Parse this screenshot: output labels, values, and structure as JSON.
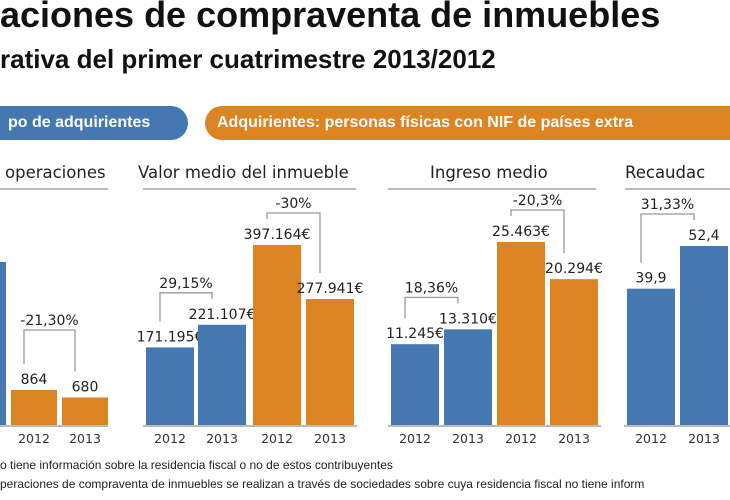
{
  "header": {
    "title": "aciones de compraventa de inmuebles",
    "subtitle": "rativa del primer cuatrimestre 2013/2012"
  },
  "legend": {
    "blue_label": "po de adquirientes",
    "orange_label": "Adquirientes: personas físicas con NIF de países extra"
  },
  "colors": {
    "blue": "#4578b0",
    "orange": "#dc8422"
  },
  "chart_data": [
    {
      "type": "bar",
      "title": "operaciones",
      "categories": [
        "2012",
        "2013"
      ],
      "bars": [
        {
          "series": "orange",
          "year": "2012",
          "value": 864,
          "label": "864"
        },
        {
          "series": "orange",
          "year": "2013",
          "value": 680,
          "label": "680"
        }
      ],
      "changes": [
        {
          "from": 0,
          "to": 1,
          "label": "-21,30%"
        }
      ]
    },
    {
      "type": "bar",
      "title": "Valor medio del inmueble",
      "bars": [
        {
          "series": "blue",
          "year": "2012",
          "value": 171195,
          "label": "171.195€"
        },
        {
          "series": "blue",
          "year": "2013",
          "value": 221107,
          "label": "221.107€"
        },
        {
          "series": "orange",
          "year": "2012",
          "value": 397164,
          "label": "397.164€"
        },
        {
          "series": "orange",
          "year": "2013",
          "value": 277941,
          "label": "277.941€"
        }
      ],
      "changes": [
        {
          "from": 0,
          "to": 1,
          "label": "29,15%"
        },
        {
          "from": 2,
          "to": 3,
          "label": "-30%"
        }
      ]
    },
    {
      "type": "bar",
      "title": "Ingreso medio",
      "bars": [
        {
          "series": "blue",
          "year": "2012",
          "value": 11245,
          "label": "11.245€"
        },
        {
          "series": "blue",
          "year": "2013",
          "value": 13310,
          "label": "13.310€"
        },
        {
          "series": "orange",
          "year": "2012",
          "value": 25463,
          "label": "25.463€"
        },
        {
          "series": "orange",
          "year": "2013",
          "value": 20294,
          "label": "20.294€"
        }
      ],
      "changes": [
        {
          "from": 0,
          "to": 1,
          "label": "18,36%"
        },
        {
          "from": 2,
          "to": 3,
          "label": "-20,3%"
        }
      ]
    },
    {
      "type": "bar",
      "title": "Recaudac",
      "bars": [
        {
          "series": "blue",
          "year": "2012",
          "value": 39.9,
          "label": "39,9"
        },
        {
          "series": "blue",
          "year": "2013",
          "value": 52.4,
          "label": "52,4"
        }
      ],
      "changes": [
        {
          "from": 0,
          "to": 1,
          "label": "31,33%"
        }
      ]
    }
  ],
  "footnotes": [
    "o tiene información sobre la residencia fiscal o no de estos contribuyentes",
    "peraciones de compraventa de inmuebles se realizan a través de sociedades sobre cuya residencia fiscal no tiene inform"
  ]
}
